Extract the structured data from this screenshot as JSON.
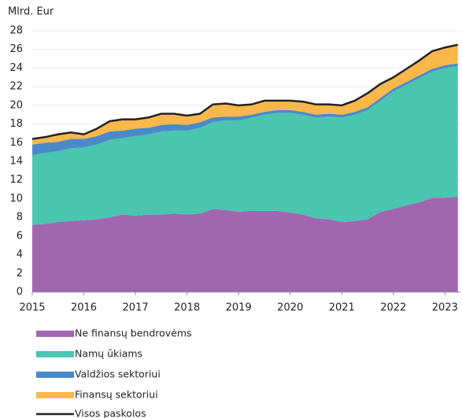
{
  "chart_data": {
    "type": "stacked_area",
    "y_label": "Mlrd. Eur",
    "x": [
      2015,
      2015.25,
      2015.5,
      2015.75,
      2016,
      2016.25,
      2016.5,
      2016.75,
      2017,
      2017.25,
      2017.5,
      2017.75,
      2018,
      2018.25,
      2018.5,
      2018.75,
      2019,
      2019.25,
      2019.5,
      2019.75,
      2020,
      2020.25,
      2020.5,
      2020.75,
      2021,
      2021.25,
      2021.5,
      2021.75,
      2022,
      2022.25,
      2022.5,
      2022.75,
      2023,
      2023.25
    ],
    "series": [
      {
        "name": "Ne finansų bendrovėms",
        "color": "#a066b0",
        "values": [
          7.2,
          7.3,
          7.5,
          7.6,
          7.7,
          7.8,
          8.0,
          8.3,
          8.2,
          8.3,
          8.3,
          8.4,
          8.3,
          8.4,
          8.9,
          8.8,
          8.6,
          8.7,
          8.7,
          8.7,
          8.5,
          8.3,
          7.9,
          7.8,
          7.5,
          7.6,
          7.8,
          8.6,
          8.9,
          9.3,
          9.6,
          10.1,
          10.1,
          10.2
        ]
      },
      {
        "name": "Namų ūkiams",
        "color": "#4ac5b0",
        "values": [
          7.5,
          7.6,
          7.6,
          7.8,
          7.8,
          8.0,
          8.3,
          8.2,
          8.5,
          8.6,
          8.9,
          8.9,
          9.0,
          9.2,
          9.3,
          9.6,
          9.8,
          10.0,
          10.3,
          10.5,
          10.7,
          10.7,
          10.8,
          11.0,
          11.2,
          11.4,
          11.7,
          11.9,
          12.6,
          12.9,
          13.3,
          13.5,
          13.9,
          14.0
        ]
      },
      {
        "name": "Valdžios sektoriui",
        "color": "#4a8ac8",
        "values": [
          1.1,
          1.1,
          1.0,
          1.0,
          0.9,
          0.9,
          0.9,
          0.8,
          0.8,
          0.7,
          0.7,
          0.7,
          0.6,
          0.6,
          0.5,
          0.4,
          0.4,
          0.3,
          0.3,
          0.3,
          0.3,
          0.3,
          0.3,
          0.3,
          0.3,
          0.3,
          0.3,
          0.3,
          0.3,
          0.3,
          0.3,
          0.3,
          0.3,
          0.3
        ]
      },
      {
        "name": "Finansų sektoriui",
        "color": "#fbb84a",
        "values": [
          0.6,
          0.6,
          0.8,
          0.7,
          0.5,
          0.8,
          1.1,
          1.2,
          1.0,
          1.1,
          1.2,
          1.1,
          1.0,
          0.9,
          1.4,
          1.4,
          1.2,
          1.1,
          1.2,
          1.0,
          1.0,
          1.1,
          1.1,
          1.0,
          1.0,
          1.2,
          1.5,
          1.5,
          1.2,
          1.4,
          1.6,
          1.9,
          1.9,
          2.0
        ]
      }
    ],
    "total": {
      "name": "Visos paskolos",
      "color": "#222222",
      "values": [
        16.4,
        16.6,
        16.9,
        17.1,
        16.9,
        17.5,
        18.3,
        18.5,
        18.5,
        18.7,
        19.1,
        19.1,
        18.9,
        19.1,
        20.1,
        20.2,
        20.0,
        20.1,
        20.5,
        20.5,
        20.5,
        20.4,
        20.1,
        20.1,
        20.0,
        20.5,
        21.3,
        22.3,
        23.0,
        23.9,
        24.8,
        25.8,
        26.2,
        26.5
      ]
    },
    "xlim": [
      2015,
      2023.3
    ],
    "xticks": [
      2015,
      2016,
      2017,
      2018,
      2019,
      2020,
      2021,
      2022,
      2023
    ],
    "ylim": [
      0,
      28
    ],
    "yticks": [
      0,
      2,
      4,
      6,
      8,
      10,
      12,
      14,
      16,
      18,
      20,
      22,
      24,
      26,
      28
    ],
    "grid": true
  }
}
